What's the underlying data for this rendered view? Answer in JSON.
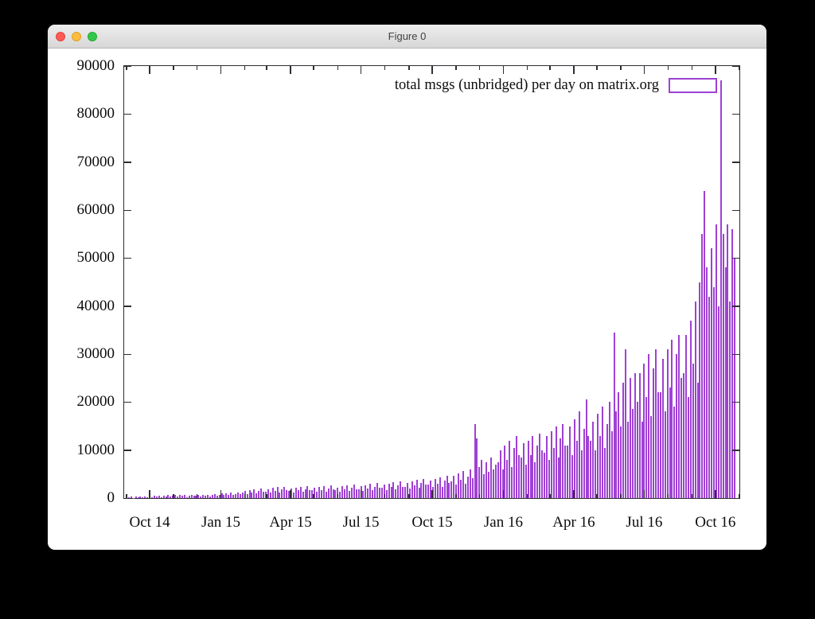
{
  "window": {
    "title": "Figure 0",
    "traffic_lights": [
      "close",
      "minimize",
      "zoom"
    ]
  },
  "chart_data": {
    "type": "bar",
    "title": "",
    "legend": "total msgs (unbridged) per day on matrix.org",
    "legend_position": "top-right",
    "grid": false,
    "xlabel": "",
    "ylabel": "",
    "ylim": [
      0,
      90000
    ],
    "y_ticks": [
      0,
      10000,
      20000,
      30000,
      40000,
      50000,
      60000,
      70000,
      80000,
      90000
    ],
    "x_ticks": [
      "Oct 14",
      "Jan 15",
      "Apr 15",
      "Jul 15",
      "Oct 15",
      "Jan 16",
      "Apr 16",
      "Jul 16",
      "Oct 16"
    ],
    "x_minor_tick_interval": "month",
    "x_range": [
      "2014-08-29",
      "2016-11-01"
    ],
    "bar_color": "#9f41d3",
    "axis_color": "#2e2e34",
    "sample_start": "2014-09-01",
    "sample_step_days": 3,
    "samples": [
      250,
      150,
      300,
      80,
      350,
      200,
      400,
      120,
      300,
      250,
      400,
      250,
      500,
      300,
      550,
      200,
      450,
      350,
      600,
      400,
      500,
      650,
      300,
      700,
      450,
      600,
      250,
      550,
      700,
      500,
      550,
      700,
      400,
      750,
      500,
      650,
      300,
      600,
      800,
      550,
      700,
      950,
      600,
      1000,
      750,
      1100,
      650,
      900,
      1200,
      800,
      1100,
      1500,
      900,
      1600,
      1200,
      1800,
      1000,
      1500,
      2000,
      1300,
      1400,
      1900,
      1100,
      2100,
      1500,
      2300,
      1200,
      1800,
      2400,
      1600,
      1500,
      2000,
      1200,
      2200,
      1600,
      2400,
      1300,
      1900,
      2500,
      1700,
      1600,
      2100,
      1300,
      2300,
      1700,
      2500,
      1400,
      2000,
      2600,
      1800,
      1700,
      2200,
      1400,
      2500,
      1800,
      2700,
      1500,
      2100,
      2800,
      1900,
      1900,
      2500,
      1500,
      2700,
      2000,
      3000,
      1600,
      2400,
      3100,
      2100,
      2100,
      2800,
      1700,
      3000,
      2300,
      3300,
      1800,
      2700,
      3500,
      2400,
      2400,
      3200,
      2000,
      3500,
      2600,
      3800,
      2100,
      3100,
      4000,
      2800,
      2800,
      3700,
      2300,
      4000,
      3000,
      4400,
      2400,
      3600,
      4700,
      3200,
      3500,
      4700,
      2900,
      5100,
      3800,
      5600,
      3000,
      4500,
      6000,
      4100,
      15500,
      12500,
      6500,
      8000,
      5000,
      7500,
      5500,
      8500,
      6000,
      7000,
      7500,
      10000,
      6000,
      11000,
      8000,
      12000,
      6500,
      10500,
      13000,
      9000,
      8500,
      11500,
      7000,
      12000,
      9000,
      13000,
      7500,
      11000,
      13500,
      10000,
      9500,
      13000,
      8000,
      14000,
      10500,
      15000,
      8500,
      12500,
      15500,
      11000,
      11000,
      15000,
      9000,
      16500,
      12000,
      18000,
      10000,
      14500,
      20500,
      13000,
      12000,
      16000,
      10000,
      17500,
      13000,
      19000,
      10500,
      15500,
      20000,
      14000,
      34500,
      18000,
      22000,
      15000,
      24000,
      31000,
      16000,
      25000,
      18500,
      26000,
      20000,
      26000,
      16000,
      28000,
      21000,
      30000,
      17000,
      27000,
      31000,
      22000,
      22000,
      29000,
      18000,
      31000,
      23000,
      33000,
      19000,
      30000,
      34000,
      25000,
      26000,
      34000,
      21000,
      37000,
      28000,
      41000,
      24000,
      45000,
      55000,
      64000,
      48000,
      42000,
      52000,
      44000,
      57000,
      40000,
      87000,
      55000,
      48000,
      57000,
      41000,
      56000,
      50000
    ]
  }
}
